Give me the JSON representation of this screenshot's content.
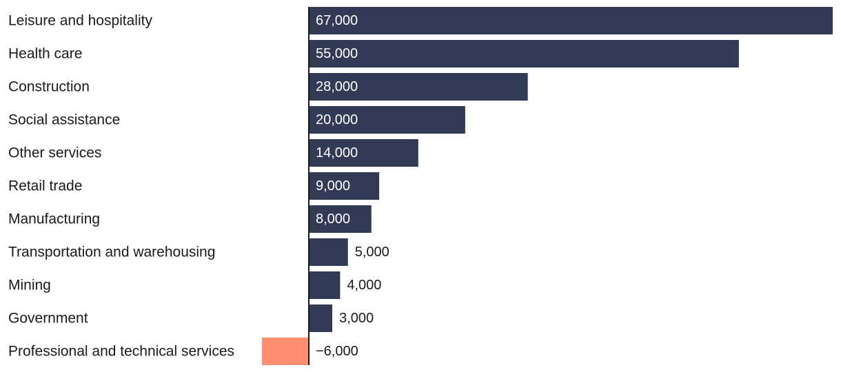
{
  "chart_data": {
    "type": "bar",
    "orientation": "horizontal",
    "categories": [
      "Leisure and hospitality",
      "Health care",
      "Construction",
      "Social assistance",
      "Other services",
      "Retail trade",
      "Manufacturing",
      "Transportation and warehousing",
      "Mining",
      "Government",
      "Professional and technical services"
    ],
    "values": [
      67000,
      55000,
      28000,
      20000,
      14000,
      9000,
      8000,
      5000,
      4000,
      3000,
      -6000
    ],
    "value_labels": [
      "67,000",
      "55,000",
      "28,000",
      "20,000",
      "14,000",
      "9,000",
      "8,000",
      "5,000",
      "4,000",
      "3,000",
      "−6,000"
    ],
    "title": "",
    "xlabel": "",
    "ylabel": "",
    "xlim": [
      -6000,
      67000
    ],
    "grid": false,
    "colors": {
      "positive": "#333a56",
      "negative": "#ff8f70",
      "axis": "#1a1a1a",
      "label_inside": "#ffffff",
      "label_outside": "#1a1a1a"
    }
  }
}
